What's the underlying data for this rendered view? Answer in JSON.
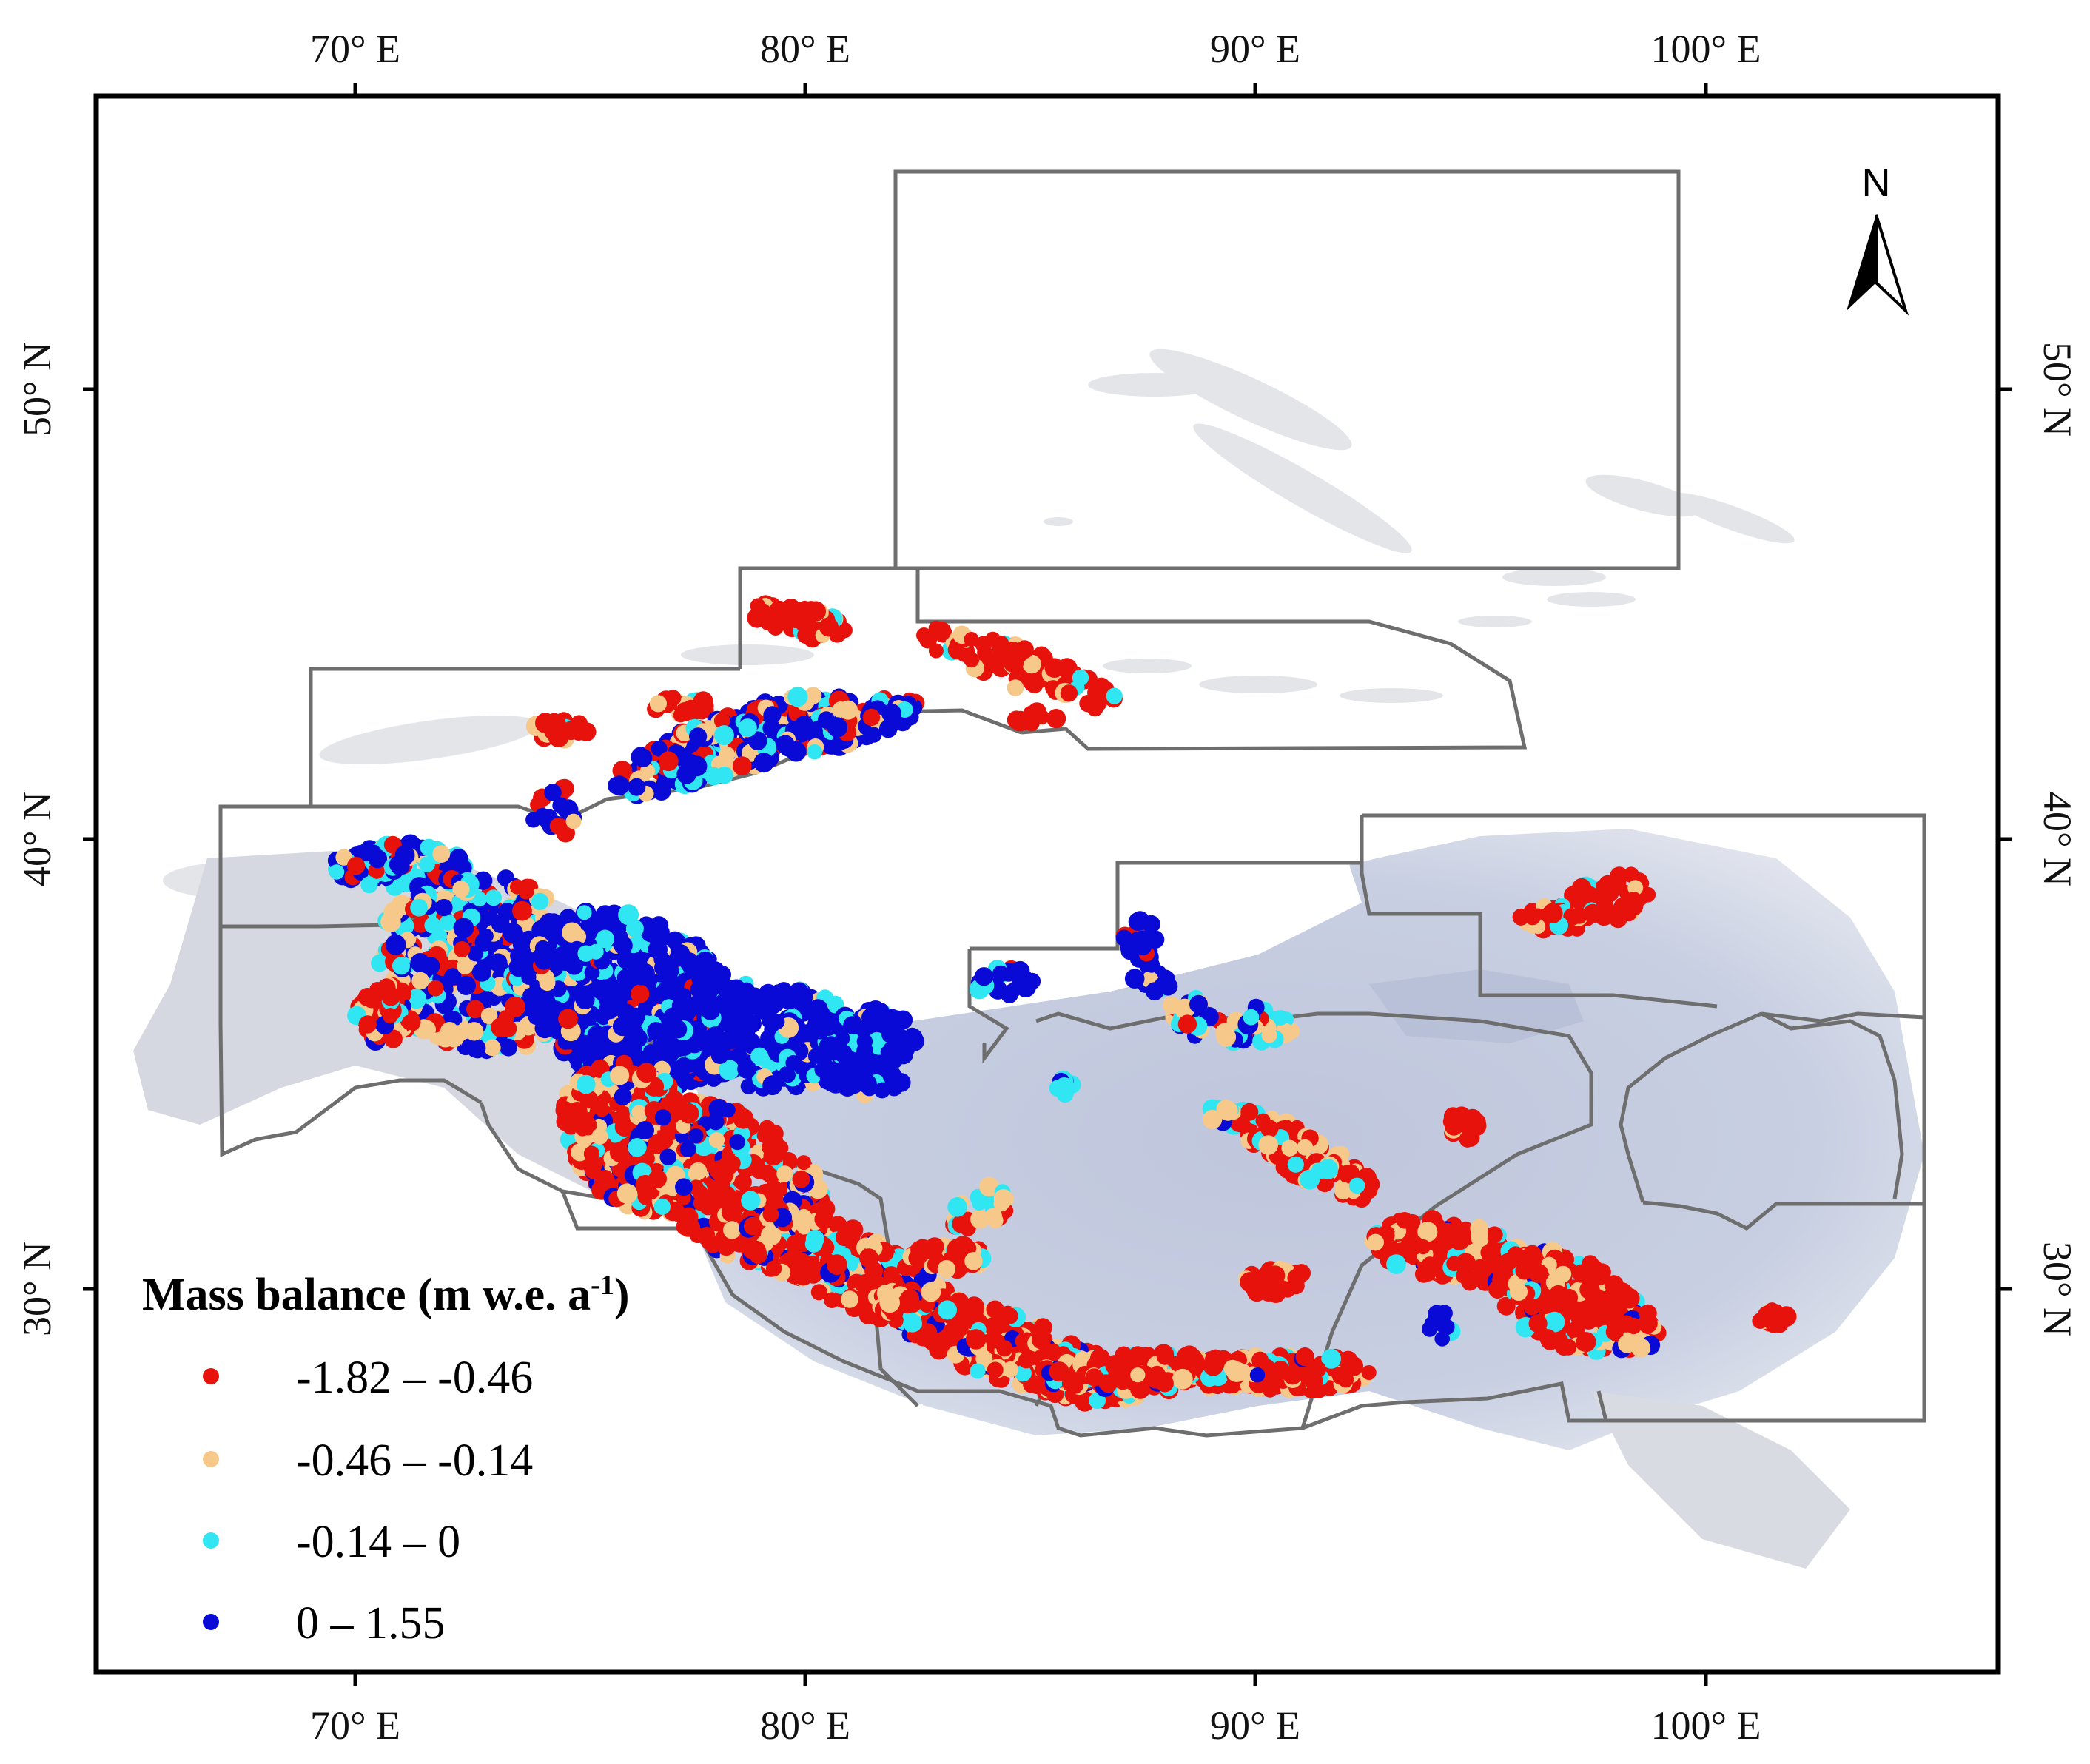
{
  "map": {
    "x_ticks": [
      "70° E",
      "80° E",
      "90° E",
      "100° E"
    ],
    "y_ticks": [
      "50° N",
      "40° N",
      "30° N"
    ],
    "north_arrow": "N",
    "legend": {
      "title": "Mass balance (m w.e. a",
      "title_sup": "-1",
      "title_end": ")",
      "classes": [
        {
          "label": "-1.82 – -0.46",
          "color": "#e8120c"
        },
        {
          "label": "-0.46 – -0.14",
          "color": "#f6c98a"
        },
        {
          "label": "-0.14 – 0",
          "color": "#2fe6f2"
        },
        {
          "label": "0 – 1.55",
          "color": "#0a0ad6"
        }
      ]
    },
    "colors": {
      "frame": "#000000",
      "region_border": "#6e6e6e",
      "plateau_fill": "#c9d0e2",
      "mountain_fill": "#d7d9dd"
    }
  }
}
